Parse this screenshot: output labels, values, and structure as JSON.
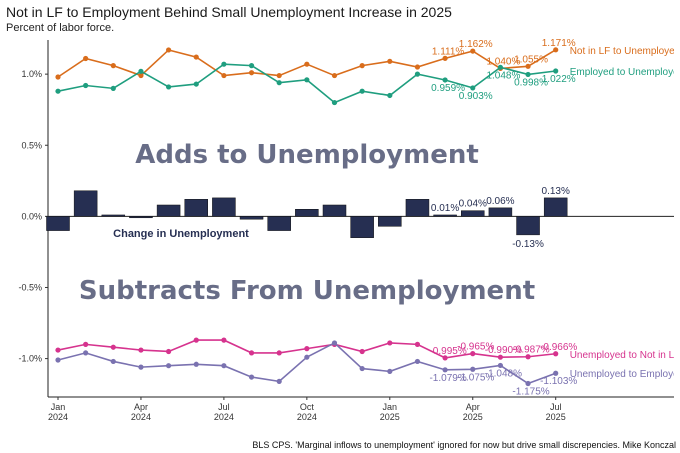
{
  "title": "Not in LF to Employment Behind Small Unemployment Increase in 2025",
  "subtitle": "Percent of labor force.",
  "caption": "BLS CPS. 'Marginal inflows to unemployment' ignored for now but drive small discrepencies. Mike Konczal",
  "annotations": {
    "adds": "Adds to Unemployment",
    "subtracts": "Subtracts From Unemployment",
    "change": "Change in Unemployment"
  },
  "colors": {
    "nilf_to_emp": "#d96d1c",
    "unemp_to_emp_top": "#1f9e7f",
    "unemp_to_nilf": "#d6338e",
    "unemp_to_emp_bottom": "#7a72b0",
    "bars": "#262f52",
    "big_text": "#686d87"
  },
  "chart_data": {
    "type": "line",
    "x": [
      "2024-01",
      "2024-02",
      "2024-03",
      "2024-04",
      "2024-05",
      "2024-06",
      "2024-07",
      "2024-08",
      "2024-09",
      "2024-10",
      "2024-11",
      "2024-12",
      "2025-01",
      "2025-02",
      "2025-03",
      "2025-04",
      "2025-05",
      "2025-06",
      "2025-07"
    ],
    "ylim": [
      -1.27,
      1.24
    ],
    "y_ticks": [
      1.0,
      0.5,
      0.0,
      -0.5,
      -1.0
    ],
    "y_tick_labels": [
      "1.0%",
      "0.5%",
      "0.0%",
      "-0.5%",
      "-1.0%"
    ],
    "x_ticks": [
      {
        "x": "2024-01",
        "label": "Jan",
        "sub": "2024"
      },
      {
        "x": "2024-04",
        "label": "Apr",
        "sub": "2024"
      },
      {
        "x": "2024-07",
        "label": "Jul",
        "sub": "2024"
      },
      {
        "x": "2024-10",
        "label": "Oct",
        "sub": "2024"
      },
      {
        "x": "2025-01",
        "label": "Jan",
        "sub": "2025"
      },
      {
        "x": "2025-04",
        "label": "Apr",
        "sub": "2025"
      },
      {
        "x": "2025-07",
        "label": "Jul",
        "sub": "2025"
      }
    ],
    "grid": false,
    "series": [
      {
        "name": "Not in LF to Unemployed",
        "color": "#d96d1c",
        "values": [
          0.98,
          1.11,
          1.06,
          0.99,
          1.17,
          1.12,
          0.99,
          1.01,
          0.99,
          1.07,
          0.99,
          1.06,
          1.09,
          1.05,
          1.111,
          1.162,
          1.04,
          1.055,
          1.171
        ],
        "labels": [
          null,
          null,
          null,
          null,
          null,
          null,
          null,
          null,
          null,
          null,
          null,
          null,
          null,
          null,
          "1.111%",
          "1.162%",
          "1.040%",
          "1.055%",
          "1.171%"
        ]
      },
      {
        "name": "Employed to Unemployed",
        "color": "#1f9e7f",
        "values": [
          0.88,
          0.92,
          0.9,
          1.02,
          0.91,
          0.93,
          1.07,
          1.06,
          0.94,
          0.96,
          0.8,
          0.88,
          0.85,
          1.0,
          0.959,
          0.903,
          1.048,
          0.998,
          1.022
        ],
        "labels": [
          null,
          null,
          null,
          null,
          null,
          null,
          null,
          null,
          null,
          null,
          null,
          null,
          null,
          null,
          "0.959%",
          "0.903%",
          "1.048%",
          "0.998%",
          "1.022%"
        ]
      },
      {
        "name": "Unemployed to Not in LF",
        "color": "#d6338e",
        "values": [
          -0.94,
          -0.9,
          -0.92,
          -0.94,
          -0.95,
          -0.87,
          -0.87,
          -0.96,
          -0.96,
          -0.93,
          -0.9,
          -0.95,
          -0.89,
          -0.9,
          -0.995,
          -0.965,
          -0.99,
          -0.987,
          -0.966
        ],
        "labels": [
          null,
          null,
          null,
          null,
          null,
          null,
          null,
          null,
          null,
          null,
          null,
          null,
          null,
          null,
          "-0.995%",
          "-0.965%",
          "-0.990%",
          "-0.987%",
          "-0.966%"
        ]
      },
      {
        "name": "Unemployed to Employed",
        "color": "#7a72b0",
        "values": [
          -1.01,
          -0.96,
          -1.02,
          -1.06,
          -1.05,
          -1.04,
          -1.05,
          -1.13,
          -1.16,
          -0.99,
          -0.89,
          -1.07,
          -1.09,
          -1.02,
          -1.079,
          -1.075,
          -1.048,
          -1.175,
          -1.103
        ],
        "labels": [
          null,
          null,
          null,
          null,
          null,
          null,
          null,
          null,
          null,
          null,
          null,
          null,
          null,
          null,
          "-1.079%",
          "-1.075%",
          "-1.048%",
          "-1.175%",
          "-1.103%"
        ]
      }
    ],
    "bars": {
      "name": "Change in Unemployment",
      "color": "#262f52",
      "values": [
        -0.1,
        0.18,
        0.01,
        -0.01,
        0.08,
        0.12,
        0.13,
        -0.02,
        -0.1,
        0.05,
        0.08,
        -0.15,
        -0.07,
        0.12,
        0.01,
        0.04,
        0.06,
        -0.13,
        0.13
      ],
      "labels": [
        null,
        null,
        null,
        null,
        null,
        null,
        null,
        null,
        null,
        null,
        null,
        null,
        null,
        null,
        "0.01%",
        "0.04%",
        "0.06%",
        "-0.13%",
        "0.13%"
      ]
    },
    "end_labels": [
      {
        "series": 0,
        "text": "Not in LF to Unemployed"
      },
      {
        "series": 1,
        "text": "Employed to Unemployed"
      },
      {
        "series": 2,
        "text": "Unemployed to Not in LF"
      },
      {
        "series": 3,
        "text": "Unemployed to Employed"
      }
    ]
  }
}
